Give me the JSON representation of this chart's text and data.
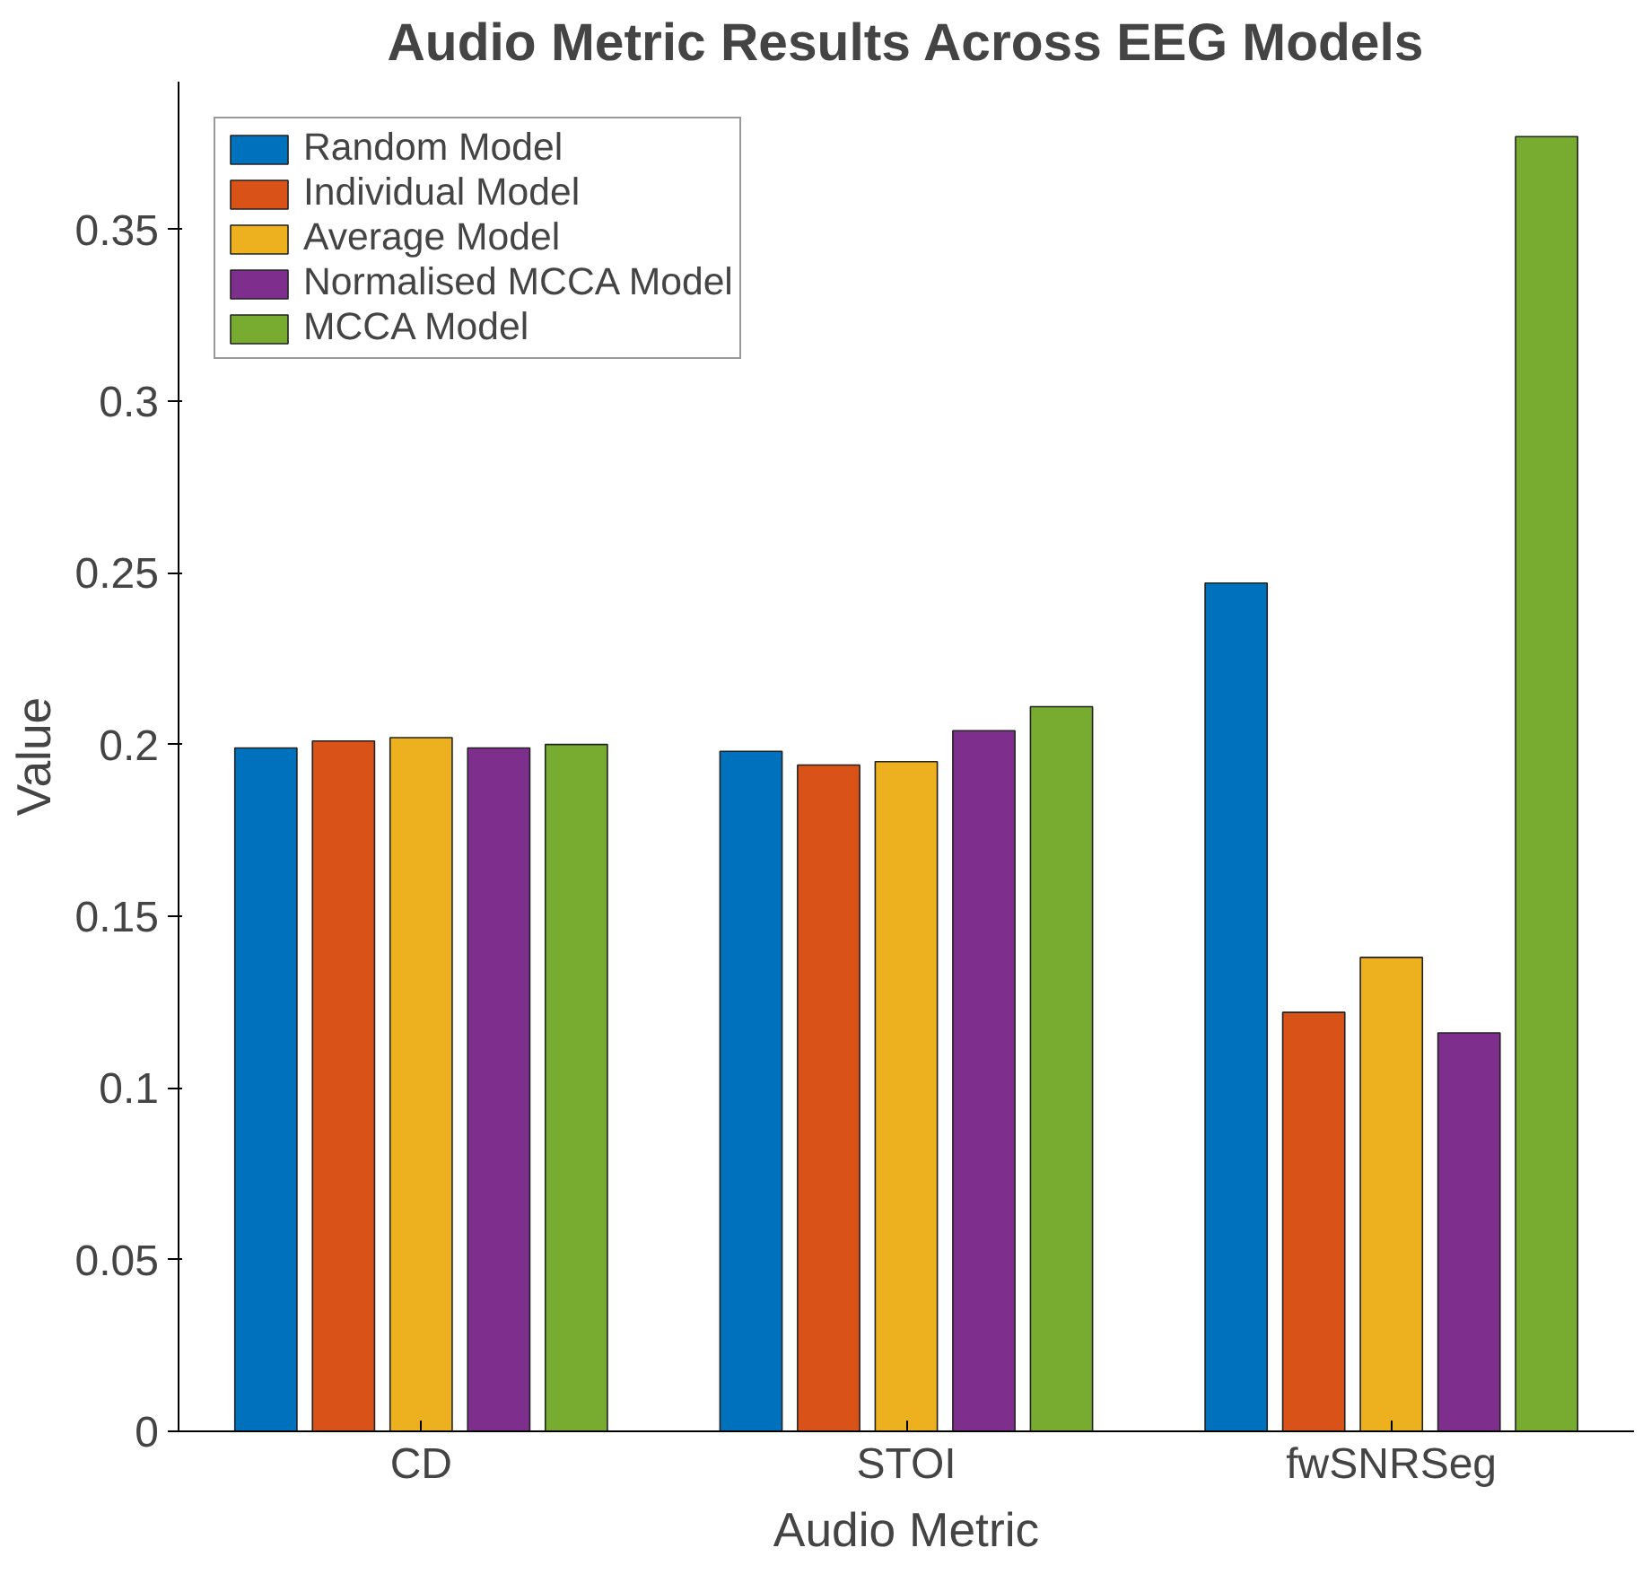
{
  "chart_data": {
    "type": "bar",
    "title": "Audio Metric Results Across EEG Models",
    "xlabel": "Audio Metric",
    "ylabel": "Value",
    "categories": [
      "CD",
      "STOI",
      "fwSNRSeg"
    ],
    "series": [
      {
        "name": "Random Model",
        "color": "#0072bd",
        "values": [
          0.199,
          0.198,
          0.247
        ]
      },
      {
        "name": "Individual Model",
        "color": "#d95319",
        "values": [
          0.201,
          0.194,
          0.122
        ]
      },
      {
        "name": "Average Model",
        "color": "#edb120",
        "values": [
          0.202,
          0.195,
          0.138
        ]
      },
      {
        "name": "Normalised MCCA Model",
        "color": "#7e2f8e",
        "values": [
          0.199,
          0.204,
          0.116
        ]
      },
      {
        "name": "MCCA Model",
        "color": "#77ac30",
        "values": [
          0.2,
          0.211,
          0.377
        ]
      }
    ],
    "ylim": [
      0,
      0.393
    ],
    "yticks": [
      0,
      0.05,
      0.1,
      0.15,
      0.2,
      0.25,
      0.3,
      0.35
    ],
    "grid": false,
    "legend": "top left"
  }
}
